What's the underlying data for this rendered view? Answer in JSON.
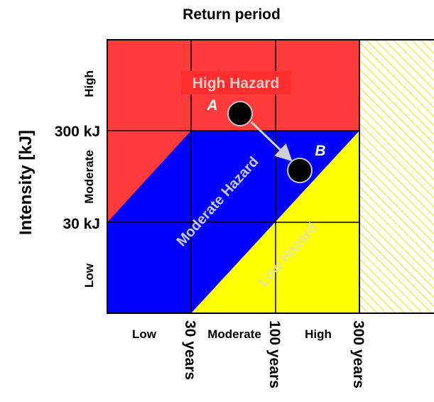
{
  "title": "Return period",
  "y_axis": {
    "label": "Intensity [kJ]",
    "thresholds": [
      "300 kJ",
      "30 kJ"
    ],
    "bands": [
      "High",
      "Moderate",
      "Low"
    ]
  },
  "x_axis": {
    "bands": [
      "Low",
      "Moderate",
      "High"
    ],
    "thresholds": [
      "30 years",
      "100 years",
      "300 years"
    ]
  },
  "zones": {
    "high": "High Hazard",
    "moderate": "Moderate Hazard",
    "low": "Low Hazard"
  },
  "points": {
    "a": "A",
    "b": "B"
  },
  "colors": {
    "high": "#ff3b3b",
    "moderate": "#0000ff",
    "low": "#ffff00",
    "hatch": "#f2ee7a",
    "point": "#000000"
  }
}
